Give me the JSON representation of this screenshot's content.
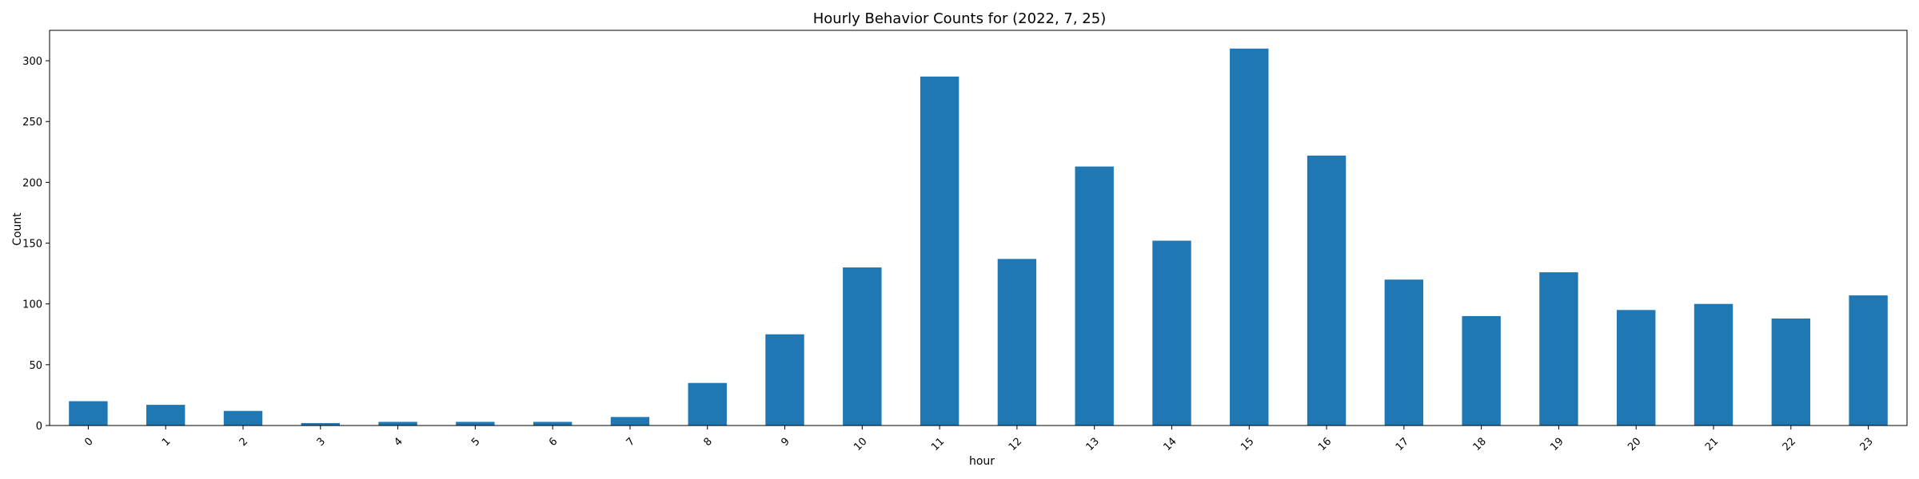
{
  "chart_data": {
    "type": "bar",
    "title": "Hourly Behavior Counts for (2022, 7, 25)",
    "xlabel": "hour",
    "ylabel": "Count",
    "categories": [
      "0",
      "1",
      "2",
      "3",
      "4",
      "5",
      "6",
      "7",
      "8",
      "9",
      "10",
      "11",
      "12",
      "13",
      "14",
      "15",
      "16",
      "17",
      "18",
      "19",
      "20",
      "21",
      "22",
      "23"
    ],
    "values": [
      20,
      17,
      12,
      2,
      3,
      3,
      3,
      7,
      35,
      75,
      130,
      287,
      137,
      213,
      152,
      310,
      222,
      120,
      90,
      126,
      95,
      100,
      88,
      107
    ],
    "ylim": [
      0,
      325
    ],
    "yticks": [
      0,
      50,
      100,
      150,
      200,
      250,
      300
    ],
    "bar_color": "#1f77b4",
    "grid": false,
    "legend": "none"
  }
}
